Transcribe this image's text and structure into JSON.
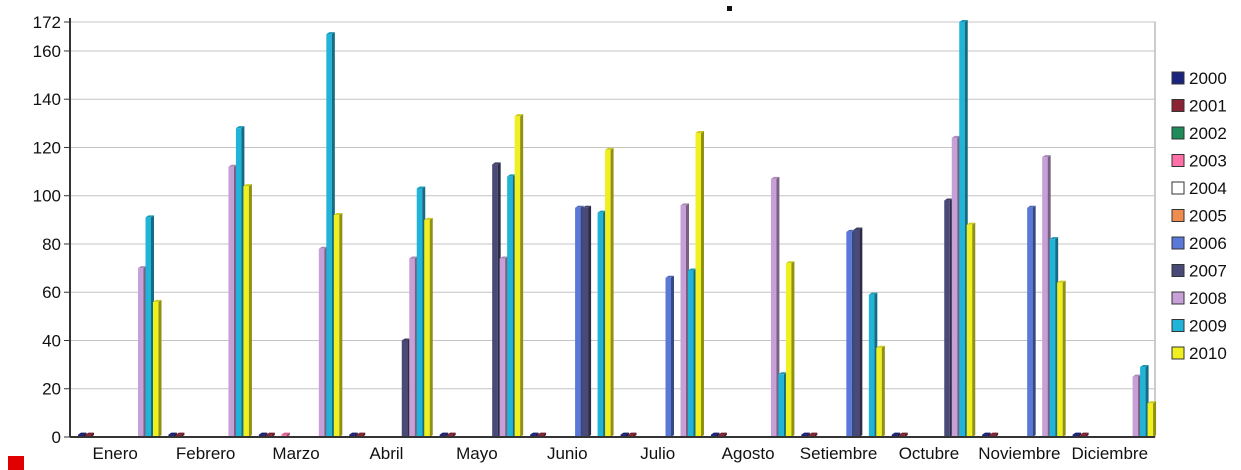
{
  "chart_data": {
    "type": "bar",
    "title": "",
    "xlabel": "",
    "ylabel": "",
    "ylim": [
      0,
      172
    ],
    "yticks": [
      0,
      20,
      40,
      60,
      80,
      100,
      120,
      140,
      160,
      172
    ],
    "grid": true,
    "legend_position": "right",
    "categories": [
      "Enero",
      "Febrero",
      "Marzo",
      "Abril",
      "Mayo",
      "Junio",
      "Julio",
      "Agosto",
      "Setiembre",
      "Octubre",
      "Noviembre",
      "Diciembre"
    ],
    "series": [
      {
        "name": "2000",
        "color": "#1a237e",
        "values": [
          1,
          1,
          1,
          1,
          1,
          1,
          1,
          1,
          1,
          1,
          1,
          1
        ]
      },
      {
        "name": "2001",
        "color": "#8b2335",
        "values": [
          1,
          1,
          1,
          1,
          1,
          1,
          1,
          1,
          1,
          1,
          1,
          1
        ]
      },
      {
        "name": "2002",
        "color": "#1e8c5a",
        "values": [
          0,
          0,
          0,
          0,
          0,
          0,
          0,
          0,
          0,
          0,
          0,
          0
        ]
      },
      {
        "name": "2003",
        "color": "#ff6fa8",
        "values": [
          0,
          0,
          1,
          0,
          0,
          0,
          0,
          0,
          0,
          0,
          0,
          0
        ]
      },
      {
        "name": "2004",
        "color": "#ffffff",
        "values": [
          0,
          0,
          0,
          0,
          0,
          0,
          0,
          0,
          0,
          0,
          0,
          0
        ]
      },
      {
        "name": "2005",
        "color": "#f08c50",
        "values": [
          0,
          0,
          0,
          0,
          0,
          0,
          0,
          0,
          0,
          0,
          0,
          0
        ]
      },
      {
        "name": "2006",
        "color": "#5a78d8",
        "values": [
          0,
          0,
          0,
          0,
          0,
          95,
          66,
          0,
          85,
          0,
          95,
          0
        ]
      },
      {
        "name": "2007",
        "color": "#4a4a78",
        "values": [
          0,
          0,
          0,
          40,
          113,
          95,
          0,
          0,
          86,
          98,
          0,
          0
        ]
      },
      {
        "name": "2008",
        "color": "#c8a0d8",
        "values": [
          70,
          112,
          78,
          74,
          74,
          0,
          96,
          107,
          0,
          124,
          116,
          25
        ]
      },
      {
        "name": "2009",
        "color": "#20b4d8",
        "values": [
          91,
          128,
          167,
          103,
          108,
          93,
          69,
          26,
          59,
          172,
          82,
          29
        ]
      },
      {
        "name": "2010",
        "color": "#f0f020",
        "values": [
          56,
          104,
          92,
          90,
          133,
          119,
          126,
          72,
          37,
          88,
          64,
          14
        ]
      }
    ]
  }
}
